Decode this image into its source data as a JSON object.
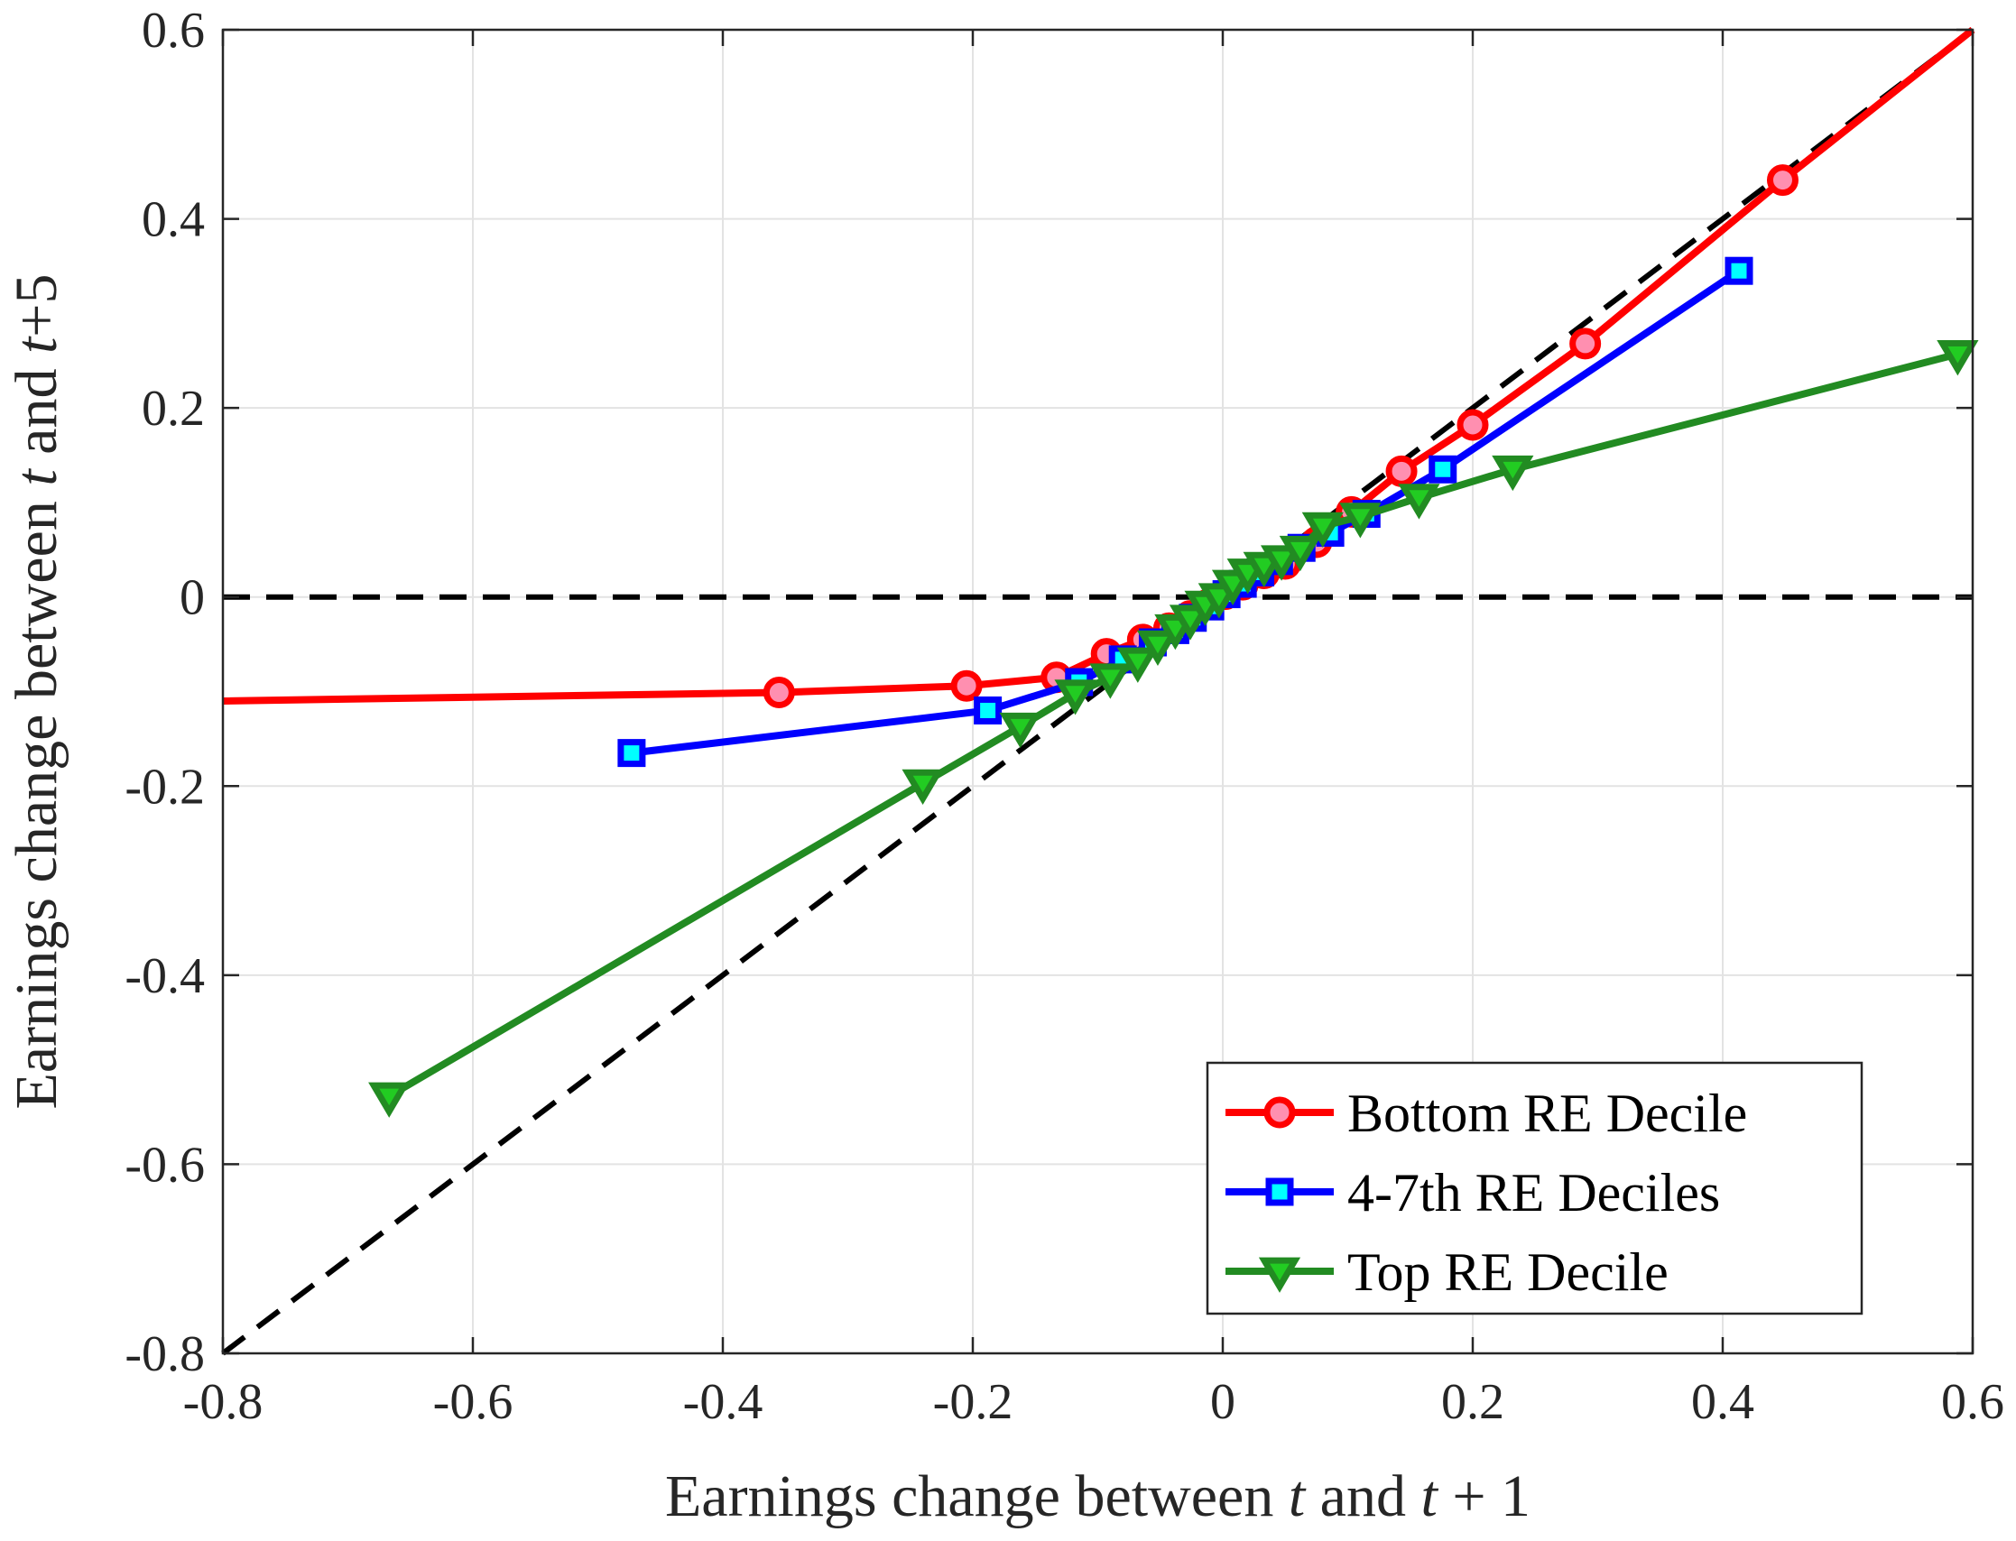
{
  "chart_data": {
    "type": "line",
    "xlabel_parts": [
      {
        "text": "Earnings change between ",
        "italic": false
      },
      {
        "text": "t",
        "italic": true
      },
      {
        "text": " and ",
        "italic": false
      },
      {
        "text": "t",
        "italic": true
      },
      {
        "text": " + 1",
        "italic": false
      }
    ],
    "ylabel_parts": [
      {
        "text": "Earnings change between ",
        "italic": false
      },
      {
        "text": "t",
        "italic": true
      },
      {
        "text": " and ",
        "italic": false
      },
      {
        "text": "t",
        "italic": true
      },
      {
        "text": "+5",
        "italic": false
      }
    ],
    "xlim": [
      -0.8,
      0.6
    ],
    "ylim": [
      -0.8,
      0.6
    ],
    "xticks": [
      -0.8,
      -0.6,
      -0.4,
      -0.2,
      0,
      0.2,
      0.4,
      0.6
    ],
    "xtick_labels": [
      "-0.8",
      "-0.6",
      "-0.4",
      "-0.2",
      "0",
      "0.2",
      "0.4",
      "0.6"
    ],
    "yticks": [
      -0.8,
      -0.6,
      -0.4,
      -0.2,
      0,
      0.2,
      0.4,
      0.6
    ],
    "ytick_labels": [
      "-0.8",
      "-0.6",
      "-0.4",
      "-0.2",
      "0",
      "0.2",
      "0.4",
      "0.6"
    ],
    "grid": true,
    "legend_position": "bottom-right",
    "reference_lines": [
      {
        "kind": "45-degree",
        "x": [
          -0.8,
          0.6
        ],
        "y": [
          -0.8,
          0.6
        ],
        "color": "#000000",
        "dashed": true
      },
      {
        "kind": "zero",
        "x": [
          -0.8,
          0.6
        ],
        "y": [
          0,
          0
        ],
        "color": "#000000",
        "dashed": true
      }
    ],
    "series": [
      {
        "name": "Bottom RE Decile",
        "color": "#ff0000",
        "marker": "circle",
        "marker_fill": "#ff8fb0",
        "line_start": [
          -0.8,
          -0.11
        ],
        "line_end": [
          0.6,
          0.6
        ],
        "x": [
          -0.355,
          -0.205,
          -0.133,
          -0.093,
          -0.064,
          -0.043,
          -0.026,
          -0.012,
          0.002,
          0.016,
          0.033,
          0.05,
          0.075,
          0.103,
          0.143,
          0.2,
          0.29,
          0.448
        ],
        "y": [
          -0.101,
          -0.094,
          -0.085,
          -0.06,
          -0.045,
          -0.033,
          -0.02,
          -0.008,
          0.003,
          0.013,
          0.025,
          0.035,
          0.058,
          0.09,
          0.133,
          0.182,
          0.268,
          0.441
        ]
      },
      {
        "name": "4-7th RE Deciles",
        "color": "#0000ff",
        "marker": "square",
        "marker_fill": "#00ffff",
        "x": [
          -0.473,
          -0.188,
          -0.115,
          -0.08,
          -0.056,
          -0.038,
          -0.024,
          -0.01,
          0.003,
          0.016,
          0.03,
          0.045,
          0.063,
          0.086,
          0.115,
          0.176,
          0.413
        ],
        "y": [
          -0.165,
          -0.12,
          -0.09,
          -0.066,
          -0.048,
          -0.035,
          -0.022,
          -0.01,
          0.003,
          0.014,
          0.026,
          0.038,
          0.052,
          0.068,
          0.088,
          0.135,
          0.345
        ]
      },
      {
        "name": "Top RE Decile",
        "color": "#228b22",
        "marker": "triangle-down",
        "marker_fill": "#22cc22",
        "x": [
          -0.667,
          -0.24,
          -0.162,
          -0.118,
          -0.09,
          -0.068,
          -0.052,
          -0.038,
          -0.026,
          -0.014,
          -0.003,
          0.008,
          0.02,
          0.033,
          0.047,
          0.062,
          0.08,
          0.11,
          0.157,
          0.232,
          0.588
        ],
        "y": [
          -0.528,
          -0.197,
          -0.137,
          -0.102,
          -0.085,
          -0.068,
          -0.05,
          -0.033,
          -0.023,
          -0.008,
          0.0,
          0.014,
          0.026,
          0.033,
          0.04,
          0.05,
          0.075,
          0.085,
          0.105,
          0.135,
          0.257
        ]
      }
    ]
  }
}
